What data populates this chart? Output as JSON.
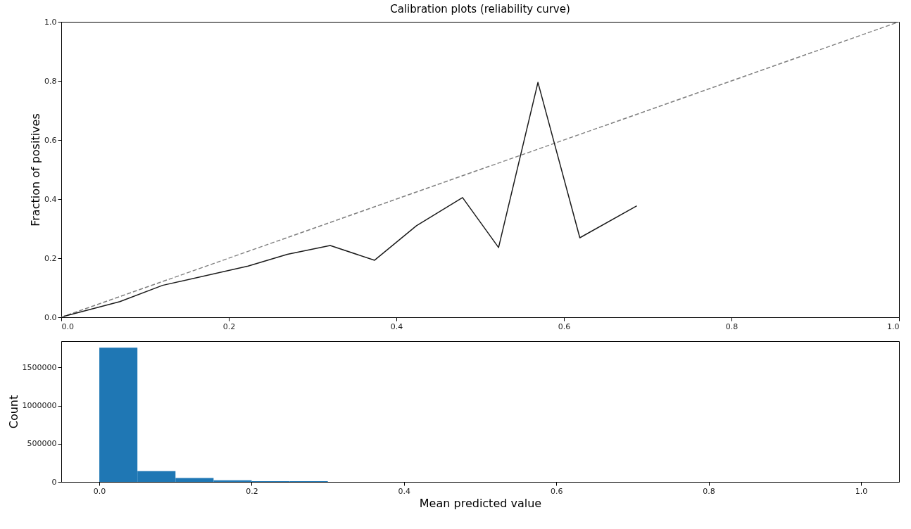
{
  "chart_data": [
    {
      "type": "line",
      "title": "Calibration plots  (reliability curve)",
      "ylabel": "Fraction of positives",
      "xlim": [
        0,
        1
      ],
      "ylim": [
        0,
        1
      ],
      "xticks": [
        {
          "value": 0,
          "label": "0.0"
        },
        {
          "value": 0.2,
          "label": "0.2"
        },
        {
          "value": 0.4,
          "label": "0.4"
        },
        {
          "value": 0.6,
          "label": "0.6"
        },
        {
          "value": 0.8,
          "label": "0.8"
        },
        {
          "value": 1,
          "label": "1.0"
        }
      ],
      "yticks": [
        {
          "value": 0,
          "label": "0.0"
        },
        {
          "value": 0.2,
          "label": "0.2"
        },
        {
          "value": 0.4,
          "label": "0.4"
        },
        {
          "value": 0.6,
          "label": "0.6"
        },
        {
          "value": 0.8,
          "label": "0.8"
        },
        {
          "value": 1,
          "label": "1.0"
        }
      ],
      "series": [
        {
          "type": "line",
          "color": "#808080",
          "line_style": "dashed",
          "x": [
            0,
            1
          ],
          "values": [
            0,
            1
          ]
        },
        {
          "type": "line",
          "color": "#1a1a1a",
          "line_style": "solid",
          "x": [
            0.003,
            0.07,
            0.121,
            0.223,
            0.27,
            0.321,
            0.374,
            0.424,
            0.479,
            0.522,
            0.569,
            0.619,
            0.687
          ],
          "values": [
            0.003,
            0.053,
            0.108,
            0.173,
            0.213,
            0.243,
            0.193,
            0.31,
            0.405,
            0.236,
            0.795,
            0.269,
            0.377
          ]
        }
      ]
    },
    {
      "type": "histogram",
      "xlabel": "Mean predicted value",
      "ylabel": "Count",
      "color": "#1f77b4",
      "xlim": [
        -0.05,
        1.05
      ],
      "ylim": [
        0,
        1846000
      ],
      "xticks": [
        {
          "value": 0,
          "label": "0.0"
        },
        {
          "value": 0.2,
          "label": "0.2"
        },
        {
          "value": 0.4,
          "label": "0.4"
        },
        {
          "value": 0.6,
          "label": "0.6"
        },
        {
          "value": 0.8,
          "label": "0.8"
        },
        {
          "value": 1,
          "label": "1.0"
        }
      ],
      "yticks": [
        0,
        500000,
        1000000,
        1500000
      ],
      "bins": [
        0,
        0.05,
        0.1,
        0.15,
        0.2,
        0.25,
        0.3
      ],
      "values": [
        1760000,
        140000,
        50000,
        20000,
        10000,
        10000
      ]
    }
  ]
}
